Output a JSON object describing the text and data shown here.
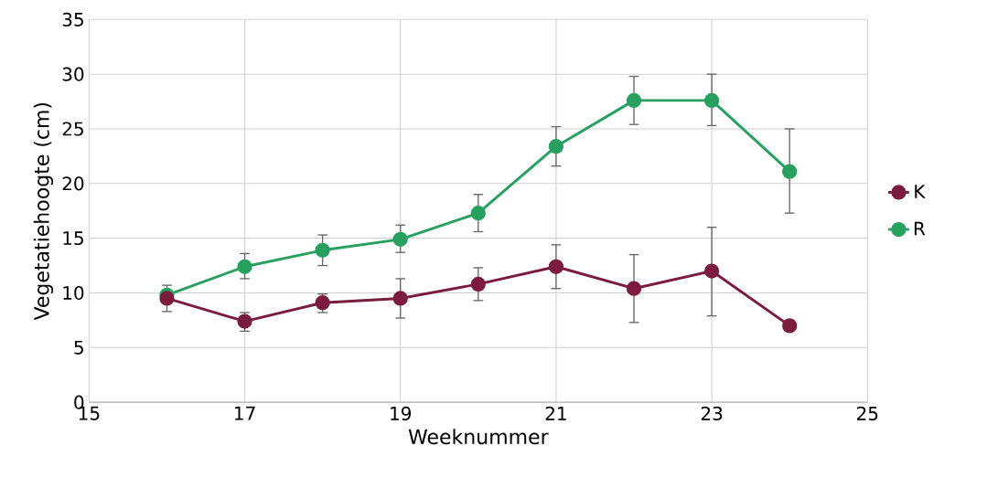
{
  "chart_data": {
    "type": "line",
    "xlabel": "Weeknummer",
    "ylabel": "Vegetatiehoogte (cm)",
    "x": [
      16,
      17,
      18,
      19,
      20,
      21,
      22,
      23,
      24
    ],
    "xlim": [
      15,
      25
    ],
    "xticks": [
      15,
      17,
      19,
      21,
      23,
      25
    ],
    "ylim": [
      0,
      35
    ],
    "yticks": [
      0,
      5,
      10,
      15,
      20,
      25,
      30,
      35
    ],
    "grid": true,
    "legend": "right",
    "marker": "circle",
    "line_style": "solid",
    "series": [
      {
        "name": "K",
        "color": "#7b1c3f",
        "values": [
          9.5,
          7.4,
          9.1,
          9.5,
          10.8,
          12.4,
          10.4,
          12.0,
          7.0
        ],
        "errors": [
          [
            8.3,
            10.7
          ],
          [
            6.5,
            8.2
          ],
          [
            8.2,
            9.9
          ],
          [
            7.7,
            11.3
          ],
          [
            9.3,
            12.3
          ],
          [
            10.4,
            14.4
          ],
          [
            7.3,
            13.5
          ],
          [
            7.9,
            16.0
          ],
          null
        ]
      },
      {
        "name": "R",
        "color": "#27a060",
        "values": [
          9.8,
          12.4,
          13.9,
          14.9,
          17.3,
          23.4,
          27.6,
          27.6,
          21.1
        ],
        "errors": [
          null,
          [
            11.3,
            13.6
          ],
          [
            12.5,
            15.3
          ],
          [
            13.7,
            16.2
          ],
          [
            15.6,
            19.0
          ],
          [
            21.6,
            25.2
          ],
          [
            25.4,
            29.8
          ],
          [
            25.3,
            30.0
          ],
          [
            17.3,
            25.0
          ]
        ]
      }
    ]
  }
}
